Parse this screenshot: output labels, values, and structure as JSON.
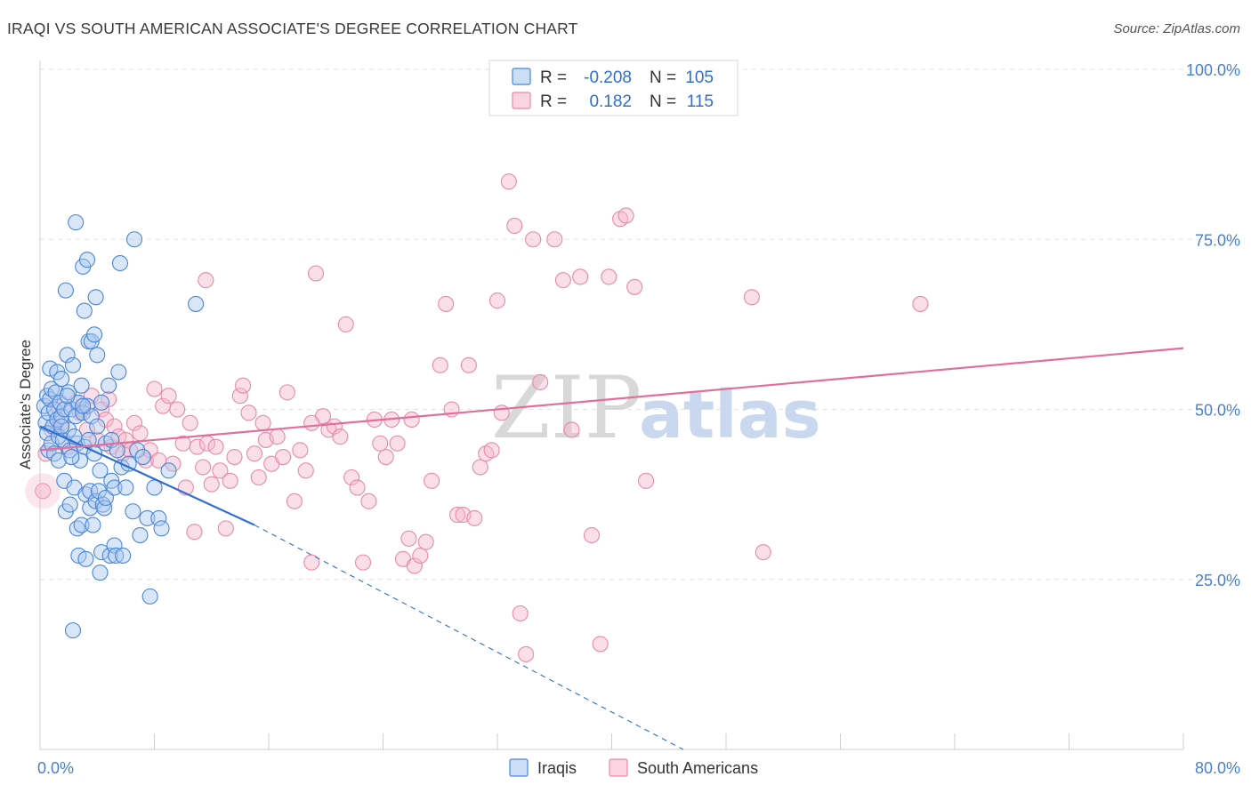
{
  "title": "IRAQI VS SOUTH AMERICAN ASSOCIATE'S DEGREE CORRELATION CHART",
  "source": "Source: ZipAtlas.com",
  "watermark": {
    "zip": "ZIP",
    "atlas": "atlas"
  },
  "colors": {
    "iraqis_fill": "#a9c8f0",
    "iraqis_stroke": "#4a86d8",
    "iraqis_line": "#2f6fd0",
    "south_fill": "#f7b8cc",
    "south_stroke": "#e88aa8",
    "south_line": "#e0709a",
    "grid": "#e2e2e2",
    "axis_text": "#4a7fd0"
  },
  "legend": {
    "rows": [
      {
        "r_label": "R =",
        "r_value": "-0.208",
        "n_label": "N =",
        "n_value": "105"
      },
      {
        "r_label": "R =",
        "r_value": "0.182",
        "n_label": "N =",
        "n_value": "115"
      }
    ]
  },
  "bottom_legend": [
    "Iraqis",
    "South Americans"
  ],
  "chart_data": {
    "type": "scatter",
    "title": "IRAQI VS SOUTH AMERICAN ASSOCIATE'S DEGREE CORRELATION CHART",
    "xlabel": "",
    "ylabel": "Associate's Degree",
    "xlim": [
      0,
      80
    ],
    "ylim": [
      0,
      100
    ],
    "x_tick_labels": [
      "0.0%",
      "80.0%"
    ],
    "y_ticks": [
      25,
      50,
      75,
      100
    ],
    "y_tick_labels": [
      "25.0%",
      "50.0%",
      "75.0%",
      "100.0%"
    ],
    "grid": true,
    "legend_position": "top-center",
    "series": [
      {
        "name": "Iraqis",
        "R": -0.208,
        "N": 105,
        "trend": {
          "x": [
            0,
            15
          ],
          "y": [
            47.5,
            33.0
          ],
          "dashed_extension": {
            "x": [
              15,
              45
            ],
            "y": [
              33.0,
              0.0
            ]
          }
        },
        "points": [
          [
            0.3,
            50.5
          ],
          [
            0.4,
            48.0
          ],
          [
            0.5,
            46.5
          ],
          [
            0.5,
            52.0
          ],
          [
            0.6,
            44.0
          ],
          [
            0.6,
            49.5
          ],
          [
            0.7,
            51.5
          ],
          [
            0.7,
            56.0
          ],
          [
            0.8,
            45.0
          ],
          [
            0.8,
            53.0
          ],
          [
            0.9,
            47.5
          ],
          [
            1.0,
            50.0
          ],
          [
            1.0,
            43.5
          ],
          [
            1.1,
            52.5
          ],
          [
            1.2,
            48.5
          ],
          [
            1.2,
            55.5
          ],
          [
            1.3,
            42.5
          ],
          [
            1.3,
            46.0
          ],
          [
            1.4,
            51.0
          ],
          [
            1.5,
            49.0
          ],
          [
            1.5,
            54.5
          ],
          [
            1.6,
            45.5
          ],
          [
            1.7,
            50.0
          ],
          [
            1.7,
            39.5
          ],
          [
            1.8,
            67.5
          ],
          [
            1.8,
            35.0
          ],
          [
            1.9,
            58.0
          ],
          [
            2.0,
            47.0
          ],
          [
            2.0,
            52.5
          ],
          [
            2.1,
            44.0
          ],
          [
            2.1,
            36.0
          ],
          [
            2.2,
            50.0
          ],
          [
            2.3,
            56.5
          ],
          [
            2.3,
            17.5
          ],
          [
            2.4,
            38.5
          ],
          [
            2.5,
            77.5
          ],
          [
            2.5,
            49.0
          ],
          [
            2.6,
            45.0
          ],
          [
            2.6,
            32.5
          ],
          [
            2.7,
            51.0
          ],
          [
            2.7,
            28.5
          ],
          [
            2.8,
            42.5
          ],
          [
            2.9,
            53.5
          ],
          [
            2.9,
            33.0
          ],
          [
            3.0,
            71.0
          ],
          [
            3.0,
            49.5
          ],
          [
            3.1,
            64.5
          ],
          [
            3.1,
            44.5
          ],
          [
            3.2,
            37.5
          ],
          [
            3.2,
            28.0
          ],
          [
            3.3,
            72.0
          ],
          [
            3.3,
            50.5
          ],
          [
            3.4,
            60.0
          ],
          [
            3.4,
            45.5
          ],
          [
            3.5,
            35.5
          ],
          [
            3.5,
            38.0
          ],
          [
            3.6,
            60.0
          ],
          [
            3.6,
            49.0
          ],
          [
            3.7,
            33.0
          ],
          [
            3.8,
            61.0
          ],
          [
            3.8,
            43.5
          ],
          [
            3.9,
            66.5
          ],
          [
            3.9,
            36.5
          ],
          [
            4.0,
            58.0
          ],
          [
            4.0,
            47.5
          ],
          [
            4.1,
            38.0
          ],
          [
            4.2,
            26.0
          ],
          [
            4.2,
            41.0
          ],
          [
            4.3,
            29.0
          ],
          [
            4.3,
            51.0
          ],
          [
            4.4,
            36.0
          ],
          [
            4.5,
            35.5
          ],
          [
            4.6,
            45.0
          ],
          [
            4.6,
            37.0
          ],
          [
            4.8,
            53.5
          ],
          [
            4.9,
            28.5
          ],
          [
            5.0,
            45.5
          ],
          [
            5.0,
            39.5
          ],
          [
            5.2,
            30.0
          ],
          [
            5.2,
            38.5
          ],
          [
            5.3,
            28.5
          ],
          [
            5.4,
            44.0
          ],
          [
            5.5,
            55.5
          ],
          [
            5.6,
            71.5
          ],
          [
            5.7,
            41.5
          ],
          [
            5.8,
            28.5
          ],
          [
            6.0,
            38.5
          ],
          [
            6.2,
            42.0
          ],
          [
            6.6,
            75.0
          ],
          [
            6.8,
            44.0
          ],
          [
            7.0,
            31.5
          ],
          [
            7.2,
            43.0
          ],
          [
            7.5,
            34.0
          ],
          [
            7.7,
            22.5
          ],
          [
            8.0,
            38.5
          ],
          [
            8.3,
            34.0
          ],
          [
            8.5,
            32.5
          ],
          [
            10.9,
            65.5
          ],
          [
            9.0,
            41.0
          ],
          [
            6.5,
            35.0
          ],
          [
            2.4,
            46.0
          ],
          [
            1.9,
            52.0
          ],
          [
            3.0,
            50.5
          ],
          [
            2.2,
            43.0
          ],
          [
            1.5,
            47.5
          ]
        ]
      },
      {
        "name": "South Americans",
        "R": 0.182,
        "N": 115,
        "trend": {
          "x": [
            0,
            80
          ],
          "y": [
            44.0,
            59.0
          ]
        },
        "points": [
          [
            0.2,
            38.0
          ],
          [
            0.4,
            43.5
          ],
          [
            0.8,
            47.0
          ],
          [
            1.2,
            50.5
          ],
          [
            1.5,
            48.0
          ],
          [
            2.0,
            44.5
          ],
          [
            2.5,
            51.0
          ],
          [
            2.8,
            49.5
          ],
          [
            3.0,
            50.0
          ],
          [
            3.3,
            47.0
          ],
          [
            3.6,
            52.0
          ],
          [
            4.0,
            45.5
          ],
          [
            4.3,
            50.0
          ],
          [
            4.6,
            48.5
          ],
          [
            4.8,
            51.5
          ],
          [
            5.0,
            44.5
          ],
          [
            5.2,
            47.5
          ],
          [
            5.5,
            46.0
          ],
          [
            5.8,
            43.5
          ],
          [
            6.0,
            45.5
          ],
          [
            6.3,
            44.0
          ],
          [
            6.6,
            48.0
          ],
          [
            7.0,
            46.5
          ],
          [
            7.4,
            42.5
          ],
          [
            7.7,
            44.0
          ],
          [
            8.0,
            53.0
          ],
          [
            8.3,
            42.5
          ],
          [
            8.6,
            50.5
          ],
          [
            9.0,
            52.0
          ],
          [
            9.3,
            42.0
          ],
          [
            9.6,
            50.0
          ],
          [
            10.0,
            45.0
          ],
          [
            10.2,
            38.5
          ],
          [
            10.5,
            48.0
          ],
          [
            10.8,
            32.0
          ],
          [
            11.0,
            44.5
          ],
          [
            11.4,
            41.5
          ],
          [
            11.7,
            45.0
          ],
          [
            12.0,
            39.0
          ],
          [
            12.3,
            44.5
          ],
          [
            12.6,
            41.0
          ],
          [
            13.0,
            32.5
          ],
          [
            13.3,
            39.5
          ],
          [
            13.6,
            43.0
          ],
          [
            14.0,
            52.0
          ],
          [
            14.2,
            53.5
          ],
          [
            14.6,
            49.5
          ],
          [
            15.0,
            43.5
          ],
          [
            15.3,
            40.0
          ],
          [
            15.6,
            48.0
          ],
          [
            15.8,
            45.5
          ],
          [
            16.2,
            42.0
          ],
          [
            16.6,
            46.0
          ],
          [
            17.0,
            43.0
          ],
          [
            17.3,
            52.5
          ],
          [
            17.8,
            36.5
          ],
          [
            18.2,
            44.0
          ],
          [
            18.6,
            41.0
          ],
          [
            19.0,
            27.5
          ],
          [
            19.3,
            70.0
          ],
          [
            19.8,
            49.0
          ],
          [
            20.2,
            47.0
          ],
          [
            20.6,
            47.5
          ],
          [
            21.0,
            46.0
          ],
          [
            21.4,
            62.5
          ],
          [
            21.8,
            40.0
          ],
          [
            22.2,
            38.5
          ],
          [
            22.6,
            27.5
          ],
          [
            23.0,
            36.5
          ],
          [
            23.4,
            48.5
          ],
          [
            23.8,
            45.0
          ],
          [
            24.2,
            43.0
          ],
          [
            24.6,
            48.5
          ],
          [
            25.0,
            45.0
          ],
          [
            25.4,
            28.0
          ],
          [
            25.8,
            31.0
          ],
          [
            26.2,
            27.0
          ],
          [
            26.6,
            28.5
          ],
          [
            27.0,
            30.5
          ],
          [
            27.4,
            39.5
          ],
          [
            28.0,
            56.5
          ],
          [
            28.4,
            65.5
          ],
          [
            28.8,
            50.0
          ],
          [
            29.2,
            34.5
          ],
          [
            29.6,
            34.5
          ],
          [
            30.0,
            56.5
          ],
          [
            30.4,
            34.0
          ],
          [
            30.8,
            41.5
          ],
          [
            31.2,
            43.5
          ],
          [
            31.6,
            44.0
          ],
          [
            32.0,
            66.0
          ],
          [
            32.3,
            49.5
          ],
          [
            32.8,
            83.5
          ],
          [
            33.2,
            77.0
          ],
          [
            33.6,
            20.0
          ],
          [
            34.0,
            14.0
          ],
          [
            34.5,
            75.0
          ],
          [
            35.0,
            54.0
          ],
          [
            36.0,
            75.0
          ],
          [
            36.6,
            69.0
          ],
          [
            37.2,
            47.0
          ],
          [
            37.8,
            69.5
          ],
          [
            38.6,
            31.5
          ],
          [
            39.2,
            15.5
          ],
          [
            39.8,
            69.5
          ],
          [
            40.6,
            78.0
          ],
          [
            41.0,
            78.5
          ],
          [
            41.6,
            68.0
          ],
          [
            42.4,
            39.5
          ],
          [
            49.8,
            66.5
          ],
          [
            50.6,
            29.0
          ],
          [
            61.6,
            65.5
          ],
          [
            19.0,
            48.0
          ],
          [
            26.0,
            48.5
          ],
          [
            11.6,
            69.0
          ]
        ]
      }
    ]
  }
}
